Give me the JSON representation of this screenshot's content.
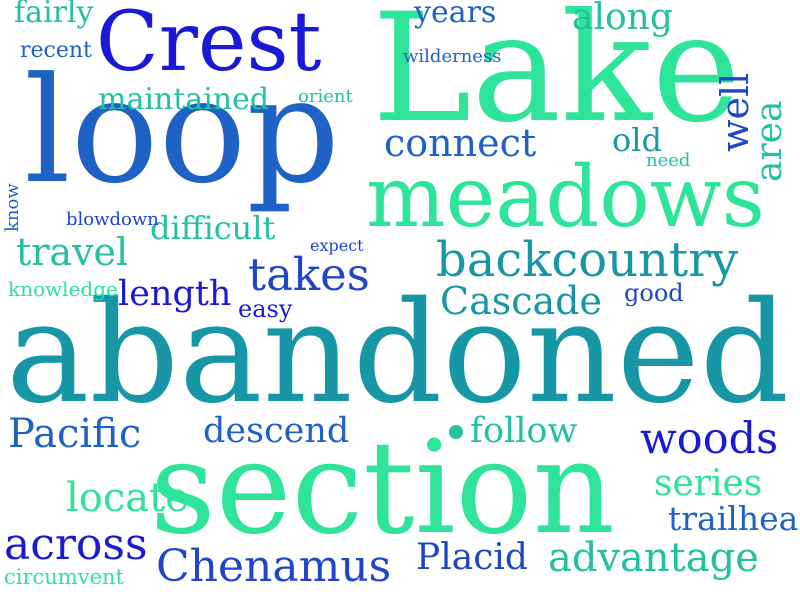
{
  "colors": {
    "dark_blue": "#1a1ad6",
    "royal_blue": "#1f46c8",
    "blue": "#1f62c6",
    "teal": "#1797a6",
    "teal_light": "#1fb3a0",
    "aqua": "#22c2a0",
    "green": "#2ee39a"
  },
  "words": [
    {
      "text": "abandoned",
      "color": "#1797a6"
    },
    {
      "text": "section",
      "color": "#2ee39a"
    },
    {
      "text": "Lake",
      "color": "#2ee39a"
    },
    {
      "text": "loop",
      "color": "#1f62c6"
    },
    {
      "text": "meadows",
      "color": "#2ee39a"
    },
    {
      "text": "Crest",
      "color": "#1a1ad6"
    },
    {
      "text": "backcountry",
      "color": "#1797a6"
    },
    {
      "text": "takes",
      "color": "#1f46c8"
    },
    {
      "text": "Cascade",
      "color": "#1797a6"
    },
    {
      "text": "Chenamus",
      "color": "#1f46c8"
    },
    {
      "text": "advantage",
      "color": "#22c2a0"
    },
    {
      "text": "across",
      "color": "#1a1ad6"
    },
    {
      "text": "woods",
      "color": "#1a1ad6"
    },
    {
      "text": "Pacific",
      "color": "#1f62c6"
    },
    {
      "text": "descend",
      "color": "#1f62c6"
    },
    {
      "text": "follow",
      "color": "#22c2a0"
    },
    {
      "text": "connect",
      "color": "#1f62c6"
    },
    {
      "text": "maintained",
      "color": "#22c2a0"
    },
    {
      "text": "travel",
      "color": "#22c2a0"
    },
    {
      "text": "length",
      "color": "#1a1ad6"
    },
    {
      "text": "series",
      "color": "#1f46c8"
    },
    {
      "text": "trailhead",
      "color": "#22c2a0"
    },
    {
      "text": "Placid",
      "color": "#2ee39a"
    },
    {
      "text": "locate",
      "color": "#1f62c6"
    },
    {
      "text": "along",
      "color": "#1f46c8"
    },
    {
      "text": "old",
      "color": "#2ee39a"
    },
    {
      "text": "difficult",
      "color": "#22c2a0"
    },
    {
      "text": "years",
      "color": "#1797a6"
    },
    {
      "text": "fairly",
      "color": "#22c2a0"
    },
    {
      "text": "recent",
      "color": "#1f62c6"
    },
    {
      "text": "easy",
      "color": "#22c2a0"
    },
    {
      "text": "good",
      "color": "#1f62c6"
    },
    {
      "text": "circumvent",
      "color": "#1a1ad6"
    },
    {
      "text": "expect",
      "color": "#1f46c8"
    },
    {
      "text": "blowdown",
      "color": "#2ee39a"
    },
    {
      "text": "knowledge",
      "color": "#1f46c8"
    },
    {
      "text": "wilderness",
      "color": "#1f62c6"
    },
    {
      "text": "orient",
      "color": "#1f46c8"
    },
    {
      "text": "need",
      "color": "#2ee39a"
    },
    {
      "text": "well",
      "color": "#1f62c6"
    },
    {
      "text": "area",
      "color": "#22c2a0"
    },
    {
      "text": "know",
      "color": "#22c2a0"
    }
  ]
}
